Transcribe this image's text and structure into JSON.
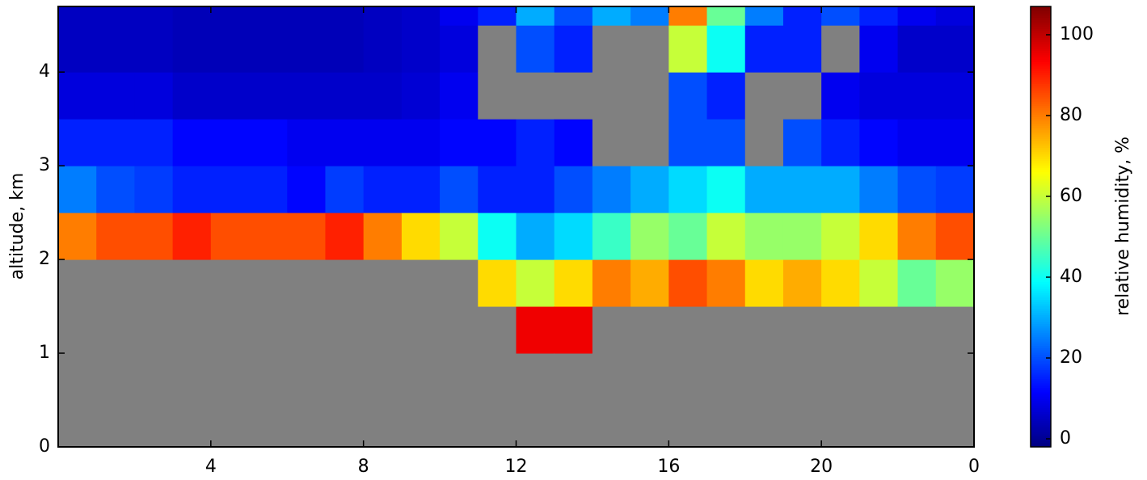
{
  "chart_data": {
    "type": "heatmap",
    "ylabel": "altitude, km",
    "colorbar_label": "relative humidity, %",
    "xlim": [
      0,
      24
    ],
    "xticks": [
      4,
      8,
      12,
      16,
      20,
      {
        "value": 24,
        "label": "0"
      }
    ],
    "ylim": [
      0,
      4.7
    ],
    "yticks": [
      0,
      1,
      2,
      3,
      4
    ],
    "clim": [
      -2,
      107
    ],
    "cticks": [
      0,
      20,
      40,
      60,
      80,
      100
    ],
    "colormap": "jet",
    "missing_color": "#808080",
    "x_edges": [
      0,
      1,
      2,
      3,
      4,
      5,
      6,
      7,
      8,
      9,
      10,
      11,
      12,
      13,
      14,
      15,
      16,
      17,
      18,
      19,
      20,
      21,
      22,
      23,
      24
    ],
    "y_edges": [
      0,
      0.5,
      1,
      1.5,
      2,
      2.5,
      3,
      3.5,
      4,
      4.5,
      4.7
    ],
    "z": [
      [
        null,
        null,
        null,
        null,
        80,
        25,
        15,
        8,
        5,
        5
      ],
      [
        null,
        null,
        null,
        null,
        85,
        20,
        15,
        8,
        5,
        5
      ],
      [
        null,
        null,
        null,
        null,
        85,
        18,
        15,
        8,
        5,
        5
      ],
      [
        null,
        null,
        null,
        null,
        90,
        15,
        12,
        6,
        4,
        4
      ],
      [
        null,
        null,
        null,
        null,
        85,
        15,
        12,
        6,
        4,
        4
      ],
      [
        null,
        null,
        null,
        null,
        85,
        15,
        12,
        6,
        4,
        4
      ],
      [
        null,
        null,
        null,
        null,
        85,
        12,
        10,
        6,
        4,
        4
      ],
      [
        null,
        null,
        null,
        null,
        90,
        18,
        10,
        6,
        4,
        4
      ],
      [
        null,
        null,
        null,
        null,
        80,
        15,
        10,
        6,
        5,
        5
      ],
      [
        null,
        null,
        null,
        null,
        70,
        15,
        10,
        7,
        6,
        6
      ],
      [
        null,
        null,
        null,
        null,
        60,
        20,
        12,
        10,
        8,
        10
      ],
      [
        null,
        null,
        null,
        70,
        40,
        15,
        12,
        null,
        null,
        15
      ],
      [
        null,
        null,
        95,
        60,
        30,
        15,
        15,
        null,
        20,
        30
      ],
      [
        null,
        null,
        95,
        70,
        35,
        20,
        12,
        null,
        15,
        20
      ],
      [
        null,
        null,
        null,
        80,
        45,
        25,
        null,
        null,
        null,
        30
      ],
      [
        null,
        null,
        null,
        75,
        55,
        30,
        null,
        null,
        null,
        25
      ],
      [
        null,
        null,
        null,
        85,
        50,
        35,
        20,
        20,
        60,
        80
      ],
      [
        null,
        null,
        null,
        80,
        60,
        40,
        20,
        15,
        40,
        50
      ],
      [
        null,
        null,
        null,
        70,
        55,
        30,
        null,
        null,
        15,
        25
      ],
      [
        null,
        null,
        null,
        75,
        55,
        30,
        20,
        null,
        15,
        15
      ],
      [
        null,
        null,
        null,
        70,
        60,
        30,
        15,
        10,
        null,
        20
      ],
      [
        null,
        null,
        null,
        60,
        70,
        25,
        12,
        8,
        10,
        15
      ],
      [
        null,
        null,
        null,
        50,
        80,
        20,
        10,
        8,
        6,
        10
      ],
      [
        null,
        null,
        null,
        55,
        85,
        18,
        10,
        8,
        6,
        8
      ]
    ]
  }
}
